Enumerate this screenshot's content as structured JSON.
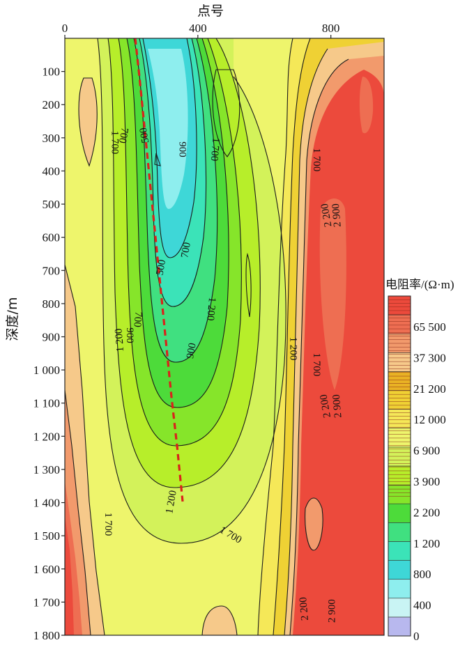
{
  "chart_data": {
    "type": "heatmap",
    "xlabel": "点号",
    "ylabel": "深度/m",
    "x_ticks": [
      "0",
      "400",
      "800"
    ],
    "x_tick_values": [
      0,
      400,
      800
    ],
    "y_ticks": [
      "100",
      "200",
      "300",
      "400",
      "500",
      "600",
      "700",
      "800",
      "900",
      "1 000",
      "1 100",
      "1 200",
      "1 300",
      "1 400",
      "1 500",
      "1 600",
      "1 700",
      "1 800"
    ],
    "y_tick_values": [
      100,
      200,
      300,
      400,
      500,
      600,
      700,
      800,
      900,
      1000,
      1100,
      1200,
      1300,
      1400,
      1500,
      1600,
      1700,
      1800
    ],
    "xlim": [
      0,
      960
    ],
    "ylim": [
      0,
      1800
    ],
    "colorbar": {
      "title": "电阻率/(Ω·m)",
      "labels": [
        "65 500",
        "37 300",
        "21 200",
        "12 000",
        "6 900",
        "3 900",
        "2 200",
        "1 200",
        "800",
        "400",
        "0"
      ],
      "colors": [
        "#b8b8ee",
        "#c9f4f4",
        "#8eeeee",
        "#3ed7d7",
        "#3be3b8",
        "#40e080",
        "#4ddb3a",
        "#86e52a",
        "#b7ee2a",
        "#d3f25a",
        "#eef56c",
        "#f5e858",
        "#efd134",
        "#e9b224",
        "#f6c98a",
        "#f29a6c",
        "#ee6e52",
        "#ec4a3c"
      ]
    },
    "contour_labels": [
      {
        "text": "700",
        "x": 185,
        "y": 140,
        "angle": 100
      },
      {
        "text": "500",
        "x": 248,
        "y": 140,
        "angle": -100
      },
      {
        "text": "1 700",
        "x": 158,
        "y": 150,
        "angle": 90
      },
      {
        "text": "900",
        "x": 370,
        "y": 160,
        "angle": 90
      },
      {
        "text": "1 700",
        "x": 472,
        "y": 160,
        "angle": 95
      },
      {
        "text": "1 700",
        "x": 790,
        "y": 175,
        "angle": 90
      },
      {
        "text": "2 200",
        "x": 818,
        "y": 255,
        "angle": -100
      },
      {
        "text": "2 900",
        "x": 850,
        "y": 255,
        "angle": -95
      },
      {
        "text": "700",
        "x": 378,
        "y": 305,
        "angle": -80
      },
      {
        "text": "500",
        "x": 300,
        "y": 330,
        "angle": -80
      },
      {
        "text": "1 200",
        "x": 460,
        "y": 390,
        "angle": 95
      },
      {
        "text": "700",
        "x": 230,
        "y": 405,
        "angle": 95
      },
      {
        "text": "1 200",
        "x": 170,
        "y": 435,
        "angle": -95
      },
      {
        "text": "900",
        "x": 205,
        "y": 428,
        "angle": 90
      },
      {
        "text": "900",
        "x": 395,
        "y": 450,
        "angle": -80
      },
      {
        "text": "1 200",
        "x": 717,
        "y": 447,
        "angle": 90
      },
      {
        "text": "1 700",
        "x": 790,
        "y": 470,
        "angle": 90
      },
      {
        "text": "2 200",
        "x": 815,
        "y": 530,
        "angle": -100
      },
      {
        "text": "2 900",
        "x": 852,
        "y": 530,
        "angle": -95
      },
      {
        "text": "1 200",
        "x": 332,
        "y": 668,
        "angle": -80
      },
      {
        "text": "1 700",
        "x": 138,
        "y": 700,
        "angle": 90
      },
      {
        "text": "1 700",
        "x": 520,
        "y": 715,
        "angle": 30
      },
      {
        "text": "2 200",
        "x": 748,
        "y": 822,
        "angle": -95
      },
      {
        "text": "2 900",
        "x": 835,
        "y": 825,
        "angle": -90
      }
    ]
  }
}
